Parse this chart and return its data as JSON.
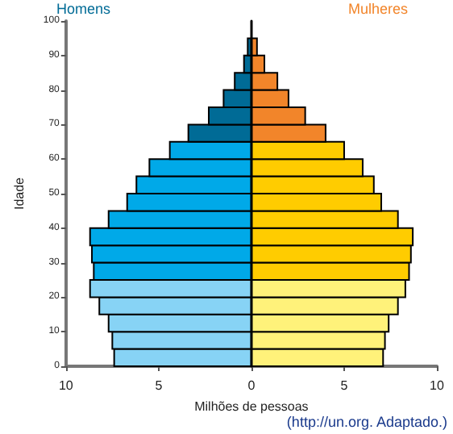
{
  "chart_data": {
    "type": "bar",
    "orientation": "horizontal",
    "stacked": true,
    "xlabel": "Milhões de pessoas",
    "ylabel": "Idade",
    "annotations": [
      "(http://un.org. Adaptado.)"
    ],
    "x": [
      2.5,
      7.5,
      12.5,
      17.5,
      22.5,
      27.5,
      32.5,
      37.5,
      42.5,
      47.5,
      52.5,
      57.5,
      62.5,
      67.5,
      72.5,
      77.5,
      82.5,
      87.5,
      92.5
    ],
    "series": [
      {
        "name": "Homens",
        "values": [
          -7.4,
          -7.5,
          -7.7,
          -8.2,
          -8.7,
          -8.5,
          -8.6,
          -8.7,
          -7.7,
          -6.7,
          -6.2,
          -5.5,
          -4.4,
          -3.4,
          -2.3,
          -1.5,
          -0.9,
          -0.4,
          -0.2
        ],
        "colors": [
          "#87d3f5",
          "#87d3f5",
          "#87d3f5",
          "#87d3f5",
          "#87d3f5",
          "#00a9e8",
          "#00a9e8",
          "#00a9e8",
          "#00a9e8",
          "#00a9e8",
          "#00a9e8",
          "#00a9e8",
          "#00a9e8",
          "#006b96",
          "#006b96",
          "#006b96",
          "#006b96",
          "#006b96",
          "#006b96"
        ]
      },
      {
        "name": "Mulheres",
        "values": [
          7.1,
          7.2,
          7.4,
          7.9,
          8.3,
          8.5,
          8.6,
          8.7,
          7.9,
          7.0,
          6.6,
          6.0,
          5.0,
          4.0,
          2.9,
          2.0,
          1.4,
          0.7,
          0.3
        ],
        "colors": [
          "#fff27a",
          "#fff27a",
          "#fff27a",
          "#fff27a",
          "#fff27a",
          "#ffcc00",
          "#ffcc00",
          "#ffcc00",
          "#ffcc00",
          "#ffcc00",
          "#ffcc00",
          "#ffcc00",
          "#ffcc00",
          "#f2852a",
          "#f2852a",
          "#f2852a",
          "#f2852a",
          "#f2852a",
          "#f2852a"
        ]
      }
    ],
    "xlim": [
      -10,
      10
    ],
    "xticks": [
      {
        "value": -10,
        "label": "10"
      },
      {
        "value": -5,
        "label": "5"
      },
      0,
      5,
      10
    ],
    "ylim": [
      0,
      100
    ],
    "yticks": [
      0,
      10,
      20,
      30,
      40,
      50,
      60,
      70,
      80,
      90,
      100
    ],
    "legend": false
  }
}
